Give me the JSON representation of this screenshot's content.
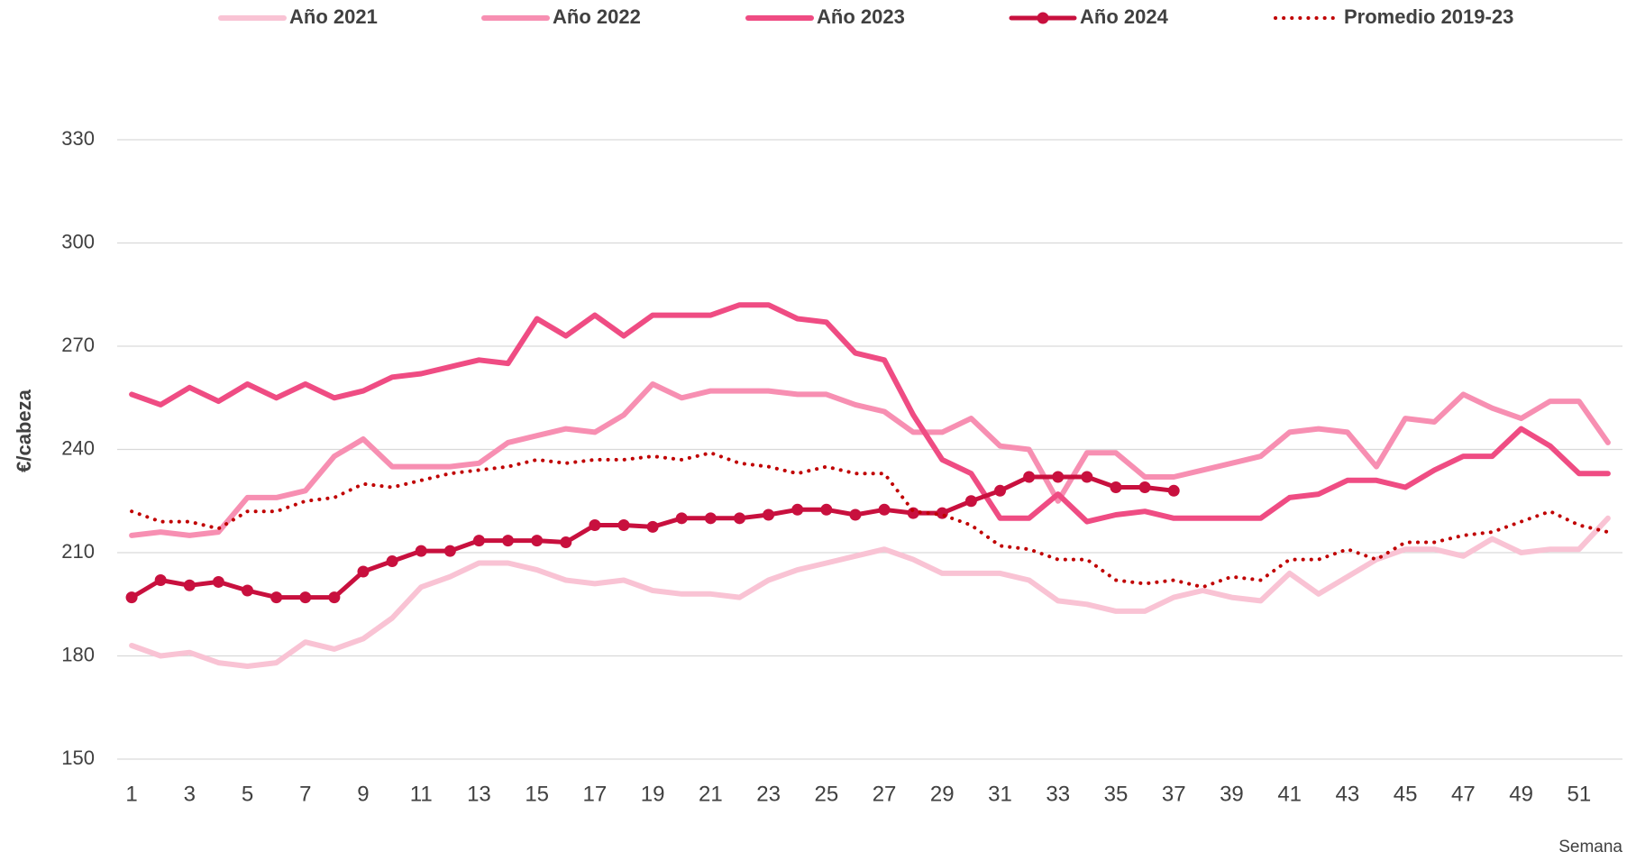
{
  "chart_data": {
    "type": "line",
    "y_label": "€/cabeza",
    "x_label": "Semana",
    "categories": [
      1,
      null,
      3,
      null,
      5,
      null,
      7,
      null,
      9,
      null,
      11,
      null,
      13,
      null,
      15,
      null,
      17,
      null,
      19,
      null,
      21,
      null,
      23,
      null,
      25,
      null,
      27,
      null,
      29,
      null,
      31,
      null,
      33,
      null,
      35,
      null,
      37,
      null,
      39,
      null,
      41,
      null,
      43,
      null,
      45,
      null,
      47,
      null,
      49,
      null,
      51,
      null
    ],
    "ylim": [
      150,
      330
    ],
    "yticks": [
      150,
      180,
      210,
      240,
      270,
      300,
      330
    ],
    "grid": true,
    "legend": "top",
    "series": [
      {
        "name": "Año 2021",
        "color": "#f9c3d4",
        "style": "solid",
        "marker": false,
        "values": [
          183,
          180,
          181,
          178,
          177,
          178,
          184,
          182,
          185,
          191,
          200,
          203,
          207,
          207,
          205,
          202,
          201,
          202,
          199,
          198,
          198,
          197,
          202,
          205,
          207,
          209,
          211,
          208,
          204,
          204,
          204,
          202,
          196,
          195,
          193,
          193,
          197,
          199,
          197,
          196,
          204,
          198,
          203,
          208,
          211,
          211,
          209,
          214,
          210,
          211,
          211,
          220
        ]
      },
      {
        "name": "Año 2022",
        "color": "#f78fb2",
        "style": "solid",
        "marker": false,
        "values": [
          215,
          216,
          215,
          216,
          226,
          226,
          228,
          238,
          243,
          235,
          235,
          235,
          236,
          242,
          244,
          246,
          245,
          250,
          259,
          255,
          257,
          257,
          257,
          256,
          256,
          253,
          251,
          245,
          245,
          249,
          241,
          240,
          225,
          239,
          239,
          232,
          232,
          234,
          236,
          238,
          245,
          246,
          245,
          235,
          249,
          248,
          256,
          252,
          249,
          254,
          254,
          242
        ]
      },
      {
        "name": "Año 2023",
        "color": "#ef4c83",
        "style": "solid",
        "marker": false,
        "values": [
          256,
          253,
          258,
          254,
          259,
          255,
          259,
          255,
          257,
          261,
          262,
          264,
          266,
          265,
          278,
          273,
          279,
          273,
          279,
          279,
          279,
          282,
          282,
          278,
          277,
          268,
          266,
          250,
          237,
          233,
          220,
          220,
          227,
          219,
          221,
          222,
          220,
          220,
          220,
          220,
          226,
          227,
          231,
          231,
          229,
          234,
          238,
          238,
          246,
          241,
          233,
          233
        ]
      },
      {
        "name": "Año 2024",
        "color": "#c8103e",
        "style": "solid",
        "marker": true,
        "values": [
          197,
          202,
          200.5,
          201.5,
          199,
          197,
          197,
          197,
          204.5,
          207.5,
          210.5,
          210.5,
          213.5,
          213.5,
          213.5,
          213,
          218,
          218,
          217.5,
          220,
          220,
          220,
          221,
          222.5,
          222.5,
          221,
          222.5,
          221.5,
          221.5,
          225,
          228,
          232,
          232,
          232,
          229,
          229,
          228,
          null,
          null,
          null,
          null,
          null,
          null,
          null,
          null,
          null,
          null,
          null,
          null,
          null,
          null,
          null
        ]
      },
      {
        "name": "Promedio 2019-23",
        "color": "#c00000",
        "style": "dotted",
        "marker": false,
        "values": [
          222,
          219,
          219,
          217,
          222,
          222,
          225,
          226,
          230,
          229,
          231,
          233,
          234,
          235,
          237,
          236,
          237,
          237,
          238,
          237,
          239,
          236,
          235,
          233,
          235,
          233,
          233,
          222,
          221,
          218,
          212,
          211,
          208,
          208,
          202,
          201,
          202,
          200,
          203,
          202,
          208,
          208,
          211,
          208,
          213,
          213,
          215,
          216,
          219,
          222,
          218,
          216
        ]
      }
    ]
  }
}
